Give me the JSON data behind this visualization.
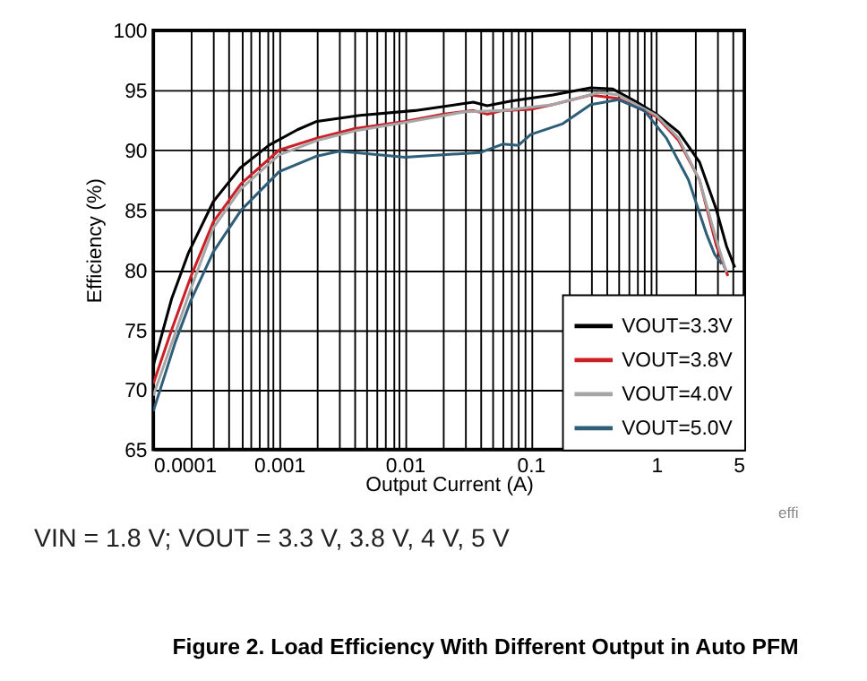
{
  "chart_data": {
    "type": "line",
    "title": "Figure 2. Load Efficiency With Different Output in Auto PFM",
    "xlabel": "Output Current (A)",
    "ylabel": "Efficiency (%)",
    "annotations": [
      "VIN = 1.8 V; VOUT = 3.3 V, 3.8 V, 4 V, 5 V",
      "effi"
    ],
    "log": "x",
    "grid": true,
    "legend": "bottom right",
    "line_style": "solid",
    "marker": "none",
    "xlim": [
      0.0001,
      5
    ],
    "ylim": [
      65,
      100
    ],
    "yticks": [
      65,
      70,
      75,
      80,
      85,
      90,
      95,
      100
    ],
    "xticks": [
      0.0001,
      {
        "value": 0.0002,
        "label": null
      },
      {
        "value": 0.0003,
        "label": null
      },
      {
        "value": 0.0004,
        "label": null
      },
      {
        "value": 0.0005,
        "label": null
      },
      {
        "value": 0.0006,
        "label": null
      },
      {
        "value": 0.0007,
        "label": null
      },
      {
        "value": 0.0008,
        "label": null
      },
      {
        "value": 0.0009,
        "label": null
      },
      0.001,
      {
        "value": 0.002,
        "label": null
      },
      {
        "value": 0.003,
        "label": null
      },
      {
        "value": 0.004,
        "label": null
      },
      {
        "value": 0.005,
        "label": null
      },
      {
        "value": 0.006,
        "label": null
      },
      {
        "value": 0.007,
        "label": null
      },
      {
        "value": 0.008,
        "label": null
      },
      {
        "value": 0.009,
        "label": null
      },
      0.01,
      {
        "value": 0.02,
        "label": null
      },
      {
        "value": 0.03,
        "label": null
      },
      {
        "value": 0.04,
        "label": null
      },
      {
        "value": 0.05,
        "label": null
      },
      {
        "value": 0.06,
        "label": null
      },
      {
        "value": 0.07,
        "label": null
      },
      {
        "value": 0.08,
        "label": null
      },
      {
        "value": 0.09,
        "label": null
      },
      0.1,
      {
        "value": 0.2,
        "label": null
      },
      {
        "value": 0.3,
        "label": null
      },
      {
        "value": 0.4,
        "label": null
      },
      {
        "value": 0.5,
        "label": null
      },
      {
        "value": 0.6,
        "label": null
      },
      {
        "value": 0.7,
        "label": null
      },
      {
        "value": 0.8,
        "label": null
      },
      {
        "value": 0.9,
        "label": null
      },
      1,
      {
        "value": 2,
        "label": null
      },
      {
        "value": 3,
        "label": null
      },
      {
        "value": 4,
        "label": null
      },
      5
    ],
    "series": [
      {
        "name": "VOUT=3.3V",
        "color": "#000000",
        "x": [
          0.0001,
          0.00014,
          0.00019,
          0.0003,
          0.00049,
          0.00083,
          0.0014,
          0.002,
          0.0044,
          0.012,
          0.035,
          0.045,
          0.07,
          0.15,
          0.3,
          0.45,
          0.7,
          1.0,
          1.5,
          2.2,
          3.0,
          3.6,
          4.2
        ],
        "values": [
          72,
          77.6,
          81.4,
          85.7,
          88.5,
          90.4,
          91.7,
          92.4,
          92.9,
          93.3,
          94.0,
          93.7,
          94.1,
          94.6,
          95.2,
          95.1,
          94.0,
          93.0,
          91.5,
          89,
          85,
          82,
          80.2
        ]
      },
      {
        "name": "VOUT=3.8V",
        "color": "#cc2027",
        "x": [
          0.0001,
          0.00014,
          0.0002,
          0.0003,
          0.0005,
          0.001,
          0.002,
          0.004,
          0.01,
          0.02,
          0.035,
          0.045,
          0.06,
          0.1,
          0.15,
          0.3,
          0.5,
          1,
          1.5,
          2.2,
          3,
          3.7
        ],
        "values": [
          70.5,
          75,
          79.5,
          84,
          87.2,
          90.0,
          91,
          91.8,
          92.4,
          93.0,
          93.3,
          93.0,
          93.3,
          93.4,
          93.8,
          94.6,
          94.3,
          92.8,
          90.8,
          87.5,
          82,
          79.5
        ]
      },
      {
        "name": "VOUT=4.0V",
        "color": "#a6a6a6",
        "x": [
          0.0001,
          0.0002,
          0.0003,
          0.0005,
          0.001,
          0.002,
          0.004,
          0.01,
          0.03,
          0.06,
          0.15,
          0.35,
          0.5,
          1,
          1.5,
          2.2,
          3,
          3.6
        ],
        "values": [
          69.5,
          78.5,
          83.5,
          86.8,
          89.6,
          90.8,
          91.6,
          92.3,
          93.2,
          93.3,
          93.8,
          94.8,
          94.6,
          92.9,
          91,
          87.5,
          82.5,
          79.8
        ]
      },
      {
        "name": "VOUT=5.0V",
        "color": "#2e5e78",
        "x": [
          0.0001,
          0.00015,
          0.0002,
          0.0003,
          0.0005,
          0.001,
          0.002,
          0.003,
          0.005,
          0.01,
          0.02,
          0.04,
          0.06,
          0.08,
          0.1,
          0.18,
          0.3,
          0.5,
          0.8,
          1.2,
          1.8,
          2.5,
          2.9,
          3.3
        ],
        "values": [
          68.2,
          74,
          77.5,
          81.5,
          85,
          88.2,
          89.5,
          89.9,
          89.7,
          89.4,
          89.6,
          89.8,
          90.5,
          90.4,
          91.3,
          92.2,
          93.8,
          94.2,
          93.3,
          91,
          87.5,
          83,
          81.3,
          80.5
        ]
      }
    ]
  }
}
